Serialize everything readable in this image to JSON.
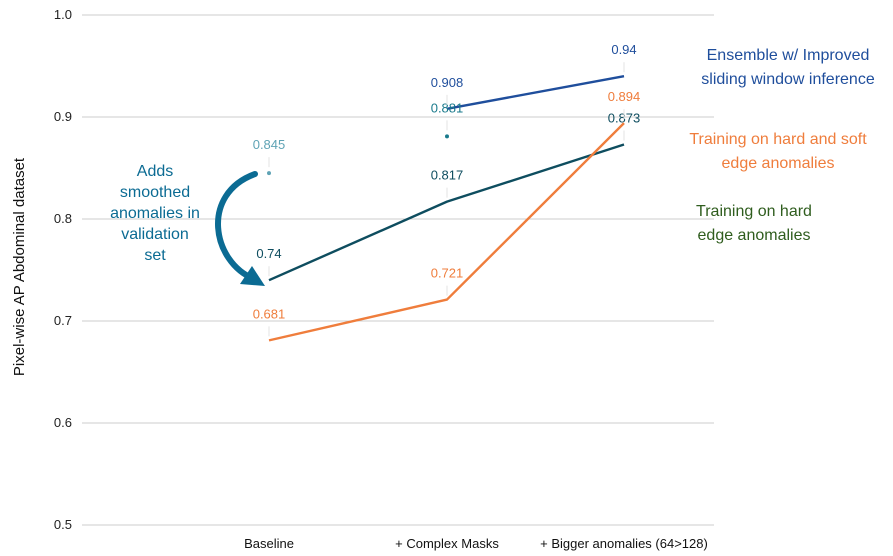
{
  "colors": {
    "ensemble": "#1f4e9c",
    "hard_soft": "#ef7d3c",
    "hard": "#0e4d5f",
    "teal_point": "#1a7a8c",
    "validation_point": "#5fa3b5",
    "arrow": "#0b6b93",
    "legend_hard": "#2f5d1e",
    "grid": "#cccccc"
  },
  "chart_data": {
    "type": "line",
    "title": "",
    "xlabel": "",
    "ylabel": "Pixel-wise AP Abdominal dataset",
    "ylim": [
      0.5,
      1.0
    ],
    "yticks": [
      "0.5",
      "0.6",
      "0.7",
      "0.8",
      "0.9",
      "1.0"
    ],
    "categories": [
      "Baseline",
      "+ Complex Masks",
      "+ Bigger anomalies (64>128)"
    ],
    "grid": true,
    "series": [
      {
        "name": "Training on hard edge anomalies",
        "color_key": "hard",
        "values": [
          0.74,
          0.817,
          0.873
        ],
        "labels": [
          "0.74",
          "0.817",
          "0.873"
        ]
      },
      {
        "name": "Training on hard and soft edge anomalies",
        "color_key": "hard_soft",
        "values": [
          0.681,
          0.721,
          0.894
        ],
        "labels": [
          "0.681",
          "0.721",
          "0.894"
        ]
      },
      {
        "name": "Ensemble w/ Improved sliding window inference",
        "color_key": "ensemble",
        "values": [
          null,
          0.908,
          0.94
        ],
        "labels": [
          "",
          "0.908",
          "0.94"
        ]
      }
    ],
    "points": [
      {
        "category": 0,
        "value": 0.845,
        "label": "0.845",
        "color_key": "validation_point"
      },
      {
        "category": 1,
        "value": 0.881,
        "label": "0.881",
        "color_key": "teal_point"
      }
    ],
    "annotations": {
      "validation_note": [
        "Adds",
        "smoothed",
        "anomalies in",
        "validation",
        "set"
      ]
    },
    "legend_labels": {
      "ensemble": [
        "Ensemble w/ Improved",
        "sliding window inference"
      ],
      "hard_soft": [
        "Training on hard and soft",
        "edge anomalies"
      ],
      "hard": [
        "Training on hard",
        "edge anomalies"
      ]
    }
  }
}
